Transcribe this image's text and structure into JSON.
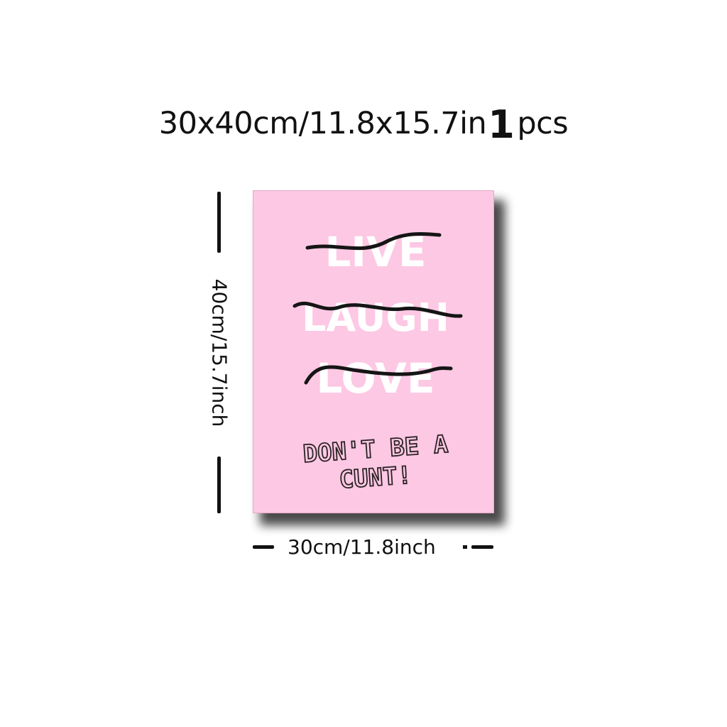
{
  "header": {
    "size": "30x40cm/11.8x15.7in",
    "quantity": "1",
    "unit": "pcs"
  },
  "dimensions": {
    "height_label": "40cm/15.7inch",
    "width_label": "30cm/11.8inch"
  },
  "poster": {
    "background_color": "#fdc8e4",
    "crossed_words": [
      "LIVE",
      "LAUGH",
      "LOVE"
    ],
    "slogan_line1": "DON'T BE A",
    "slogan_line2": "CUNT!"
  }
}
